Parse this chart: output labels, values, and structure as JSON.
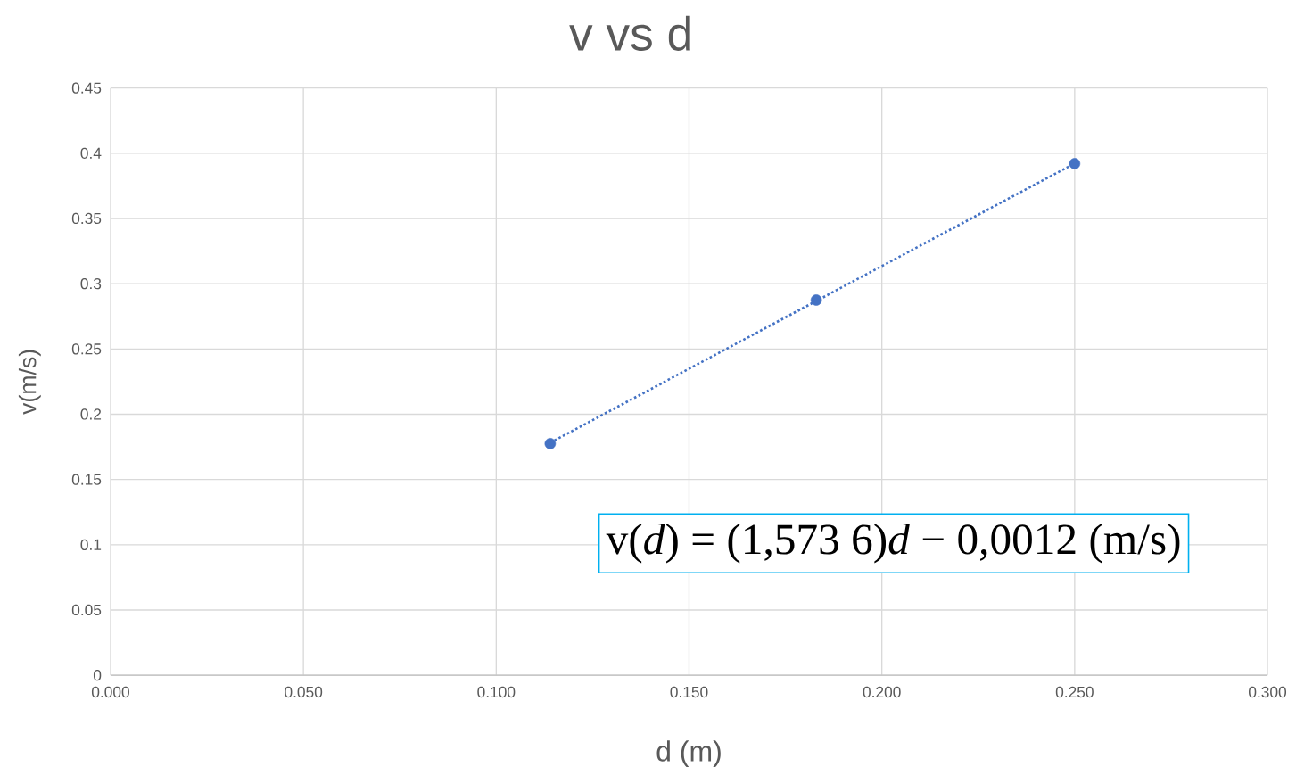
{
  "chart_data": {
    "type": "scatter",
    "title": "v vs d",
    "xlabel": "d (m)",
    "ylabel": "v(m/s)",
    "x": [
      0.114,
      0.183,
      0.25
    ],
    "series": [
      {
        "color": "#4472c4",
        "values": [
          0.1775,
          0.2875,
          0.392
        ],
        "marker": "circle"
      },
      {
        "type": "line",
        "color": "#4472c4",
        "x": [
          0.114,
          0.25
        ],
        "values": [
          0.1782,
          0.3922
        ],
        "marker": "none",
        "line_style": "dotted"
      }
    ],
    "annotations": [
      "v(*d*) = (1,573 6)*d* − 0,0012 (m/s)"
    ],
    "xlim": [
      0,
      0.3
    ],
    "xticks": [
      {
        "value": 0,
        "label": "0.000"
      },
      {
        "value": 0.05,
        "label": "0.050"
      },
      {
        "value": 0.1,
        "label": "0.100"
      },
      {
        "value": 0.15,
        "label": "0.150"
      },
      {
        "value": 0.2,
        "label": "0.200"
      },
      {
        "value": 0.25,
        "label": "0.250"
      },
      {
        "value": 0.3,
        "label": "0.300"
      }
    ],
    "ylim": [
      0,
      0.45
    ],
    "yticks": [
      0,
      0.05,
      0.1,
      0.15,
      0.2,
      0.25,
      0.3,
      0.35,
      0.4,
      0.45
    ],
    "grid": true
  }
}
